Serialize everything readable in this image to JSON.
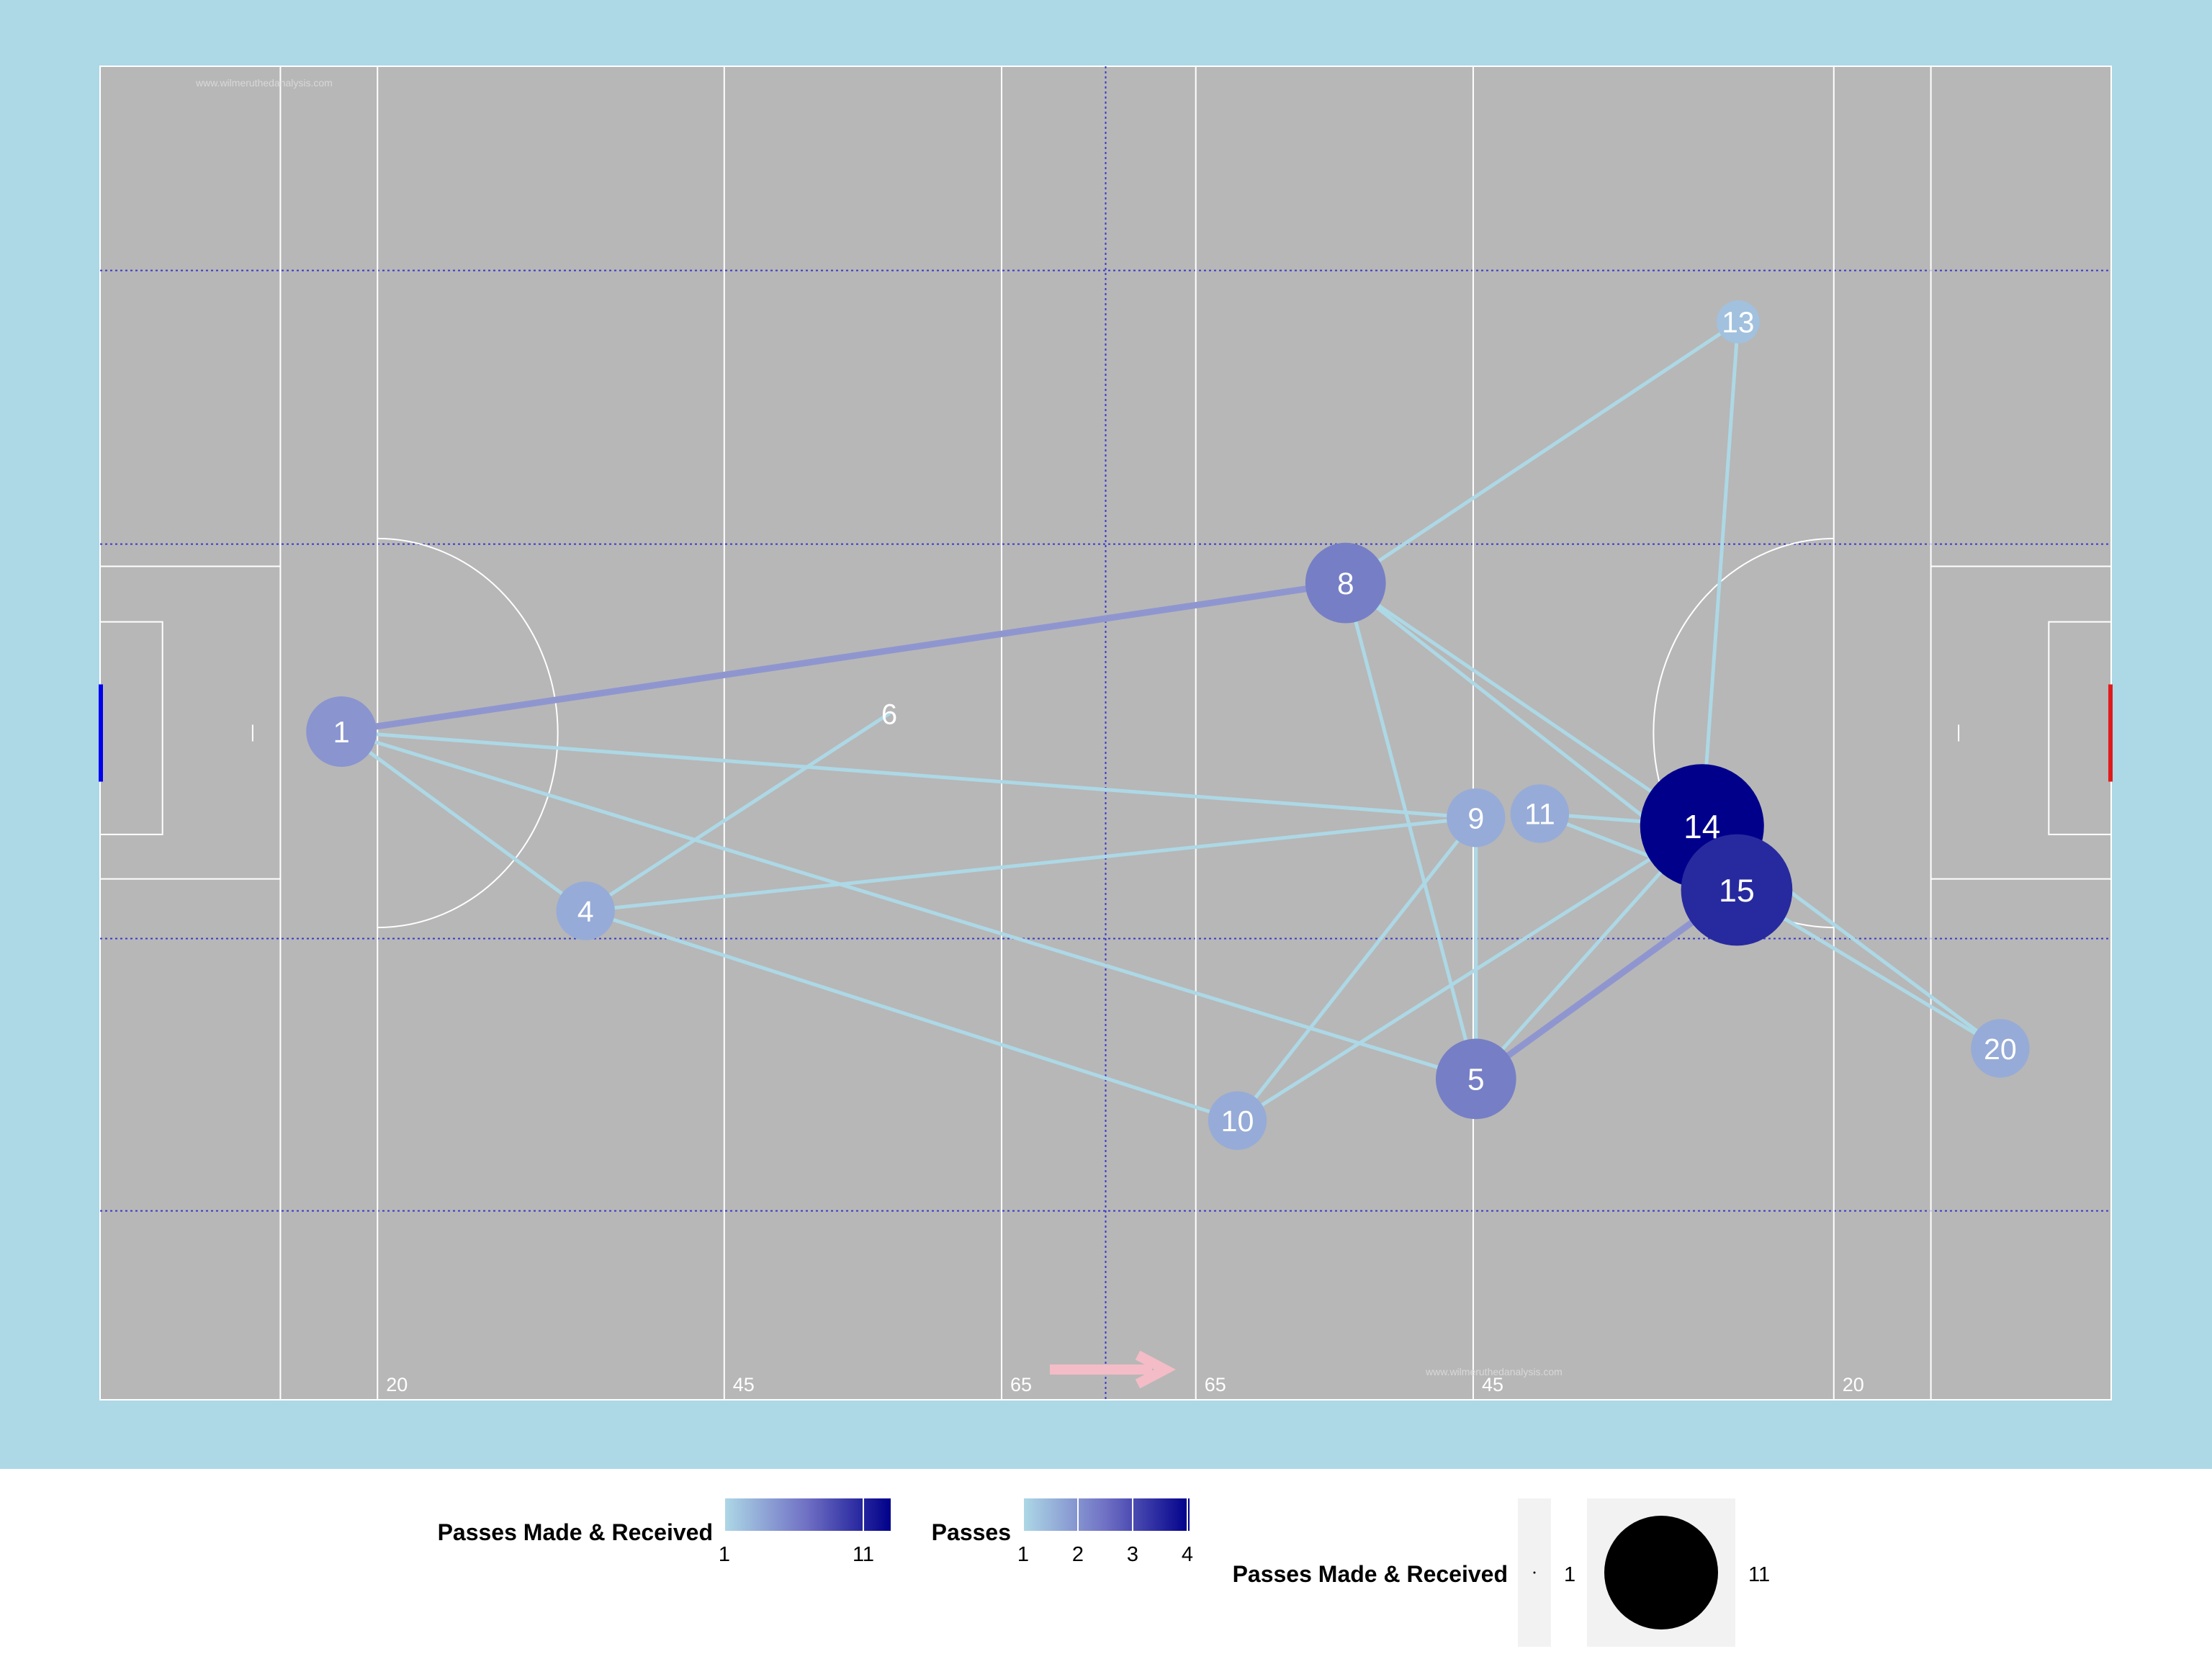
{
  "colors": {
    "panel_background": "#add8e6",
    "pitch": "#b7b7b7",
    "pitch_lines": "#ffffff",
    "dotted_lines": "#3a3acd",
    "low": "#add8e6",
    "high": "#00008b",
    "direction_arrow": "#f4bcc6",
    "left_goal": "#0000ee",
    "right_goal": "#e11b1b"
  },
  "pitch": {
    "watermark": "www.wilmeruthedanalysis.com",
    "distance_labels": [
      "20",
      "45",
      "65",
      "65",
      "45",
      "20"
    ]
  },
  "chart_data": {
    "type": "network",
    "title": "",
    "x_range": [
      0,
      145
    ],
    "y_range": [
      0,
      96
    ],
    "direction_of_play": "left-to-right",
    "nodes": [
      {
        "id": "1",
        "x": 17.4,
        "y": 48.1,
        "passes_made_received": 4
      },
      {
        "id": "4",
        "x": 35.0,
        "y": 35.2,
        "passes_made_received": 3
      },
      {
        "id": "5",
        "x": 99.2,
        "y": 23.1,
        "passes_made_received": 5
      },
      {
        "id": "6",
        "x": 56.9,
        "y": 49.4,
        "passes_made_received": 1
      },
      {
        "id": "8",
        "x": 89.8,
        "y": 58.8,
        "passes_made_received": 5
      },
      {
        "id": "9",
        "x": 99.2,
        "y": 41.9,
        "passes_made_received": 3
      },
      {
        "id": "10",
        "x": 82.0,
        "y": 20.1,
        "passes_made_received": 3
      },
      {
        "id": "11",
        "x": 103.8,
        "y": 42.2,
        "passes_made_received": 3
      },
      {
        "id": "13",
        "x": 118.1,
        "y": 77.6,
        "passes_made_received": 2
      },
      {
        "id": "14",
        "x": 115.5,
        "y": 41.3,
        "passes_made_received": 11
      },
      {
        "id": "15",
        "x": 118.0,
        "y": 36.7,
        "passes_made_received": 9
      },
      {
        "id": "20",
        "x": 137.0,
        "y": 25.3,
        "passes_made_received": 3
      }
    ],
    "edges": [
      {
        "from": "1",
        "to": "8",
        "passes": 2
      },
      {
        "from": "1",
        "to": "9",
        "passes": 1
      },
      {
        "from": "1",
        "to": "4",
        "passes": 1
      },
      {
        "from": "1",
        "to": "5",
        "passes": 1
      },
      {
        "from": "4",
        "to": "6",
        "passes": 1
      },
      {
        "from": "4",
        "to": "9",
        "passes": 1
      },
      {
        "from": "4",
        "to": "10",
        "passes": 1
      },
      {
        "from": "8",
        "to": "13",
        "passes": 1
      },
      {
        "from": "8",
        "to": "14",
        "passes": 1
      },
      {
        "from": "8",
        "to": "15",
        "passes": 1
      },
      {
        "from": "8",
        "to": "5",
        "passes": 1
      },
      {
        "from": "13",
        "to": "14",
        "passes": 1
      },
      {
        "from": "11",
        "to": "14",
        "passes": 1
      },
      {
        "from": "9",
        "to": "5",
        "passes": 1
      },
      {
        "from": "9",
        "to": "10",
        "passes": 1
      },
      {
        "from": "10",
        "to": "14",
        "passes": 1
      },
      {
        "from": "5",
        "to": "15",
        "passes": 2
      },
      {
        "from": "5",
        "to": "14",
        "passes": 1
      },
      {
        "from": "11",
        "to": "15",
        "passes": 1
      },
      {
        "from": "14",
        "to": "20",
        "passes": 1
      },
      {
        "from": "15",
        "to": "20",
        "passes": 1
      }
    ],
    "legend": {
      "placement": "bottom",
      "color_legend_nodes": {
        "title": "Passes Made & Received",
        "min": 1,
        "max": 11,
        "ticks": [
          "1",
          "11"
        ]
      },
      "color_legend_edges": {
        "title": "Passes",
        "min": 1,
        "max": 4,
        "ticks": [
          "1",
          "2",
          "3",
          "4"
        ]
      },
      "size_legend": {
        "title": "Passes Made & Received",
        "ticks": [
          "1",
          "11"
        ]
      }
    }
  }
}
